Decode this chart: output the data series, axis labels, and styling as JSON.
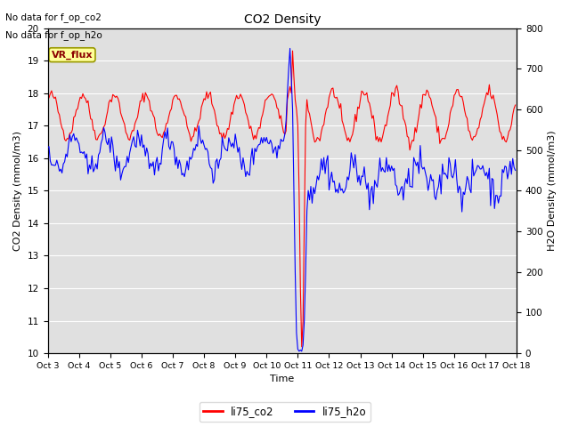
{
  "title": "CO2 Density",
  "xlabel": "Time",
  "ylabel_left": "CO2 Density (mmol/m3)",
  "ylabel_right": "H2O Density (mmol/m3)",
  "ylim_left": [
    10.0,
    20.0
  ],
  "ylim_right": [
    0,
    800
  ],
  "yticks_left": [
    10.0,
    11.0,
    12.0,
    13.0,
    14.0,
    15.0,
    16.0,
    17.0,
    18.0,
    19.0,
    20.0
  ],
  "yticks_right": [
    0,
    100,
    200,
    300,
    400,
    500,
    600,
    700,
    800
  ],
  "xtick_labels": [
    "Oct 3",
    "Oct 4",
    "Oct 5",
    "Oct 6",
    "Oct 7",
    "Oct 8",
    "Oct 9",
    "Oct 10",
    "Oct 11",
    "Oct 12",
    "Oct 13",
    "Oct 14",
    "Oct 15",
    "Oct 16",
    "Oct 17",
    "Oct 18"
  ],
  "line_co2_color": "red",
  "line_h2o_color": "blue",
  "line_width": 0.8,
  "legend_labels": [
    "li75_co2",
    "li75_h2o"
  ],
  "no_data_text": [
    "No data for f_op_co2",
    "No data for f_op_h2o"
  ],
  "vr_flux_label": "VR_flux",
  "background_color": "#e0e0e0",
  "figure_color": "white",
  "grid_color": "white"
}
